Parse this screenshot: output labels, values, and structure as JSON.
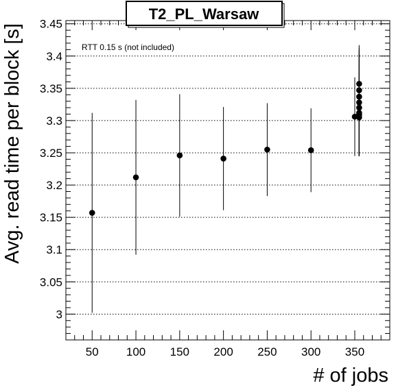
{
  "chart_data": {
    "type": "scatter",
    "title": "T2_PL_Warsaw",
    "xlabel": "# of jobs",
    "ylabel": "Avg. read time per block [s]",
    "annotation": "RTT 0.15 s (not included)",
    "xlim": [
      20,
      390
    ],
    "ylim": [
      2.96,
      3.455
    ],
    "x_ticks": [
      50,
      100,
      150,
      200,
      250,
      300,
      350
    ],
    "y_ticks": [
      3,
      3.05,
      3.1,
      3.15,
      3.2,
      3.25,
      3.3,
      3.35,
      3.4,
      3.45
    ],
    "x_tick_labels": [
      "50",
      "100",
      "150",
      "200",
      "250",
      "300",
      "350"
    ],
    "y_tick_labels": [
      "3",
      "3.05",
      "3.1",
      "3.15",
      "3.2",
      "3.25",
      "3.3",
      "3.35",
      "3.4",
      "3.45"
    ],
    "grid": {
      "x": false,
      "y": true
    },
    "points": [
      {
        "x": 50,
        "y": 3.157,
        "lo": 3.002,
        "hi": 3.312
      },
      {
        "x": 100,
        "y": 3.212,
        "lo": 3.092,
        "hi": 3.332
      },
      {
        "x": 150,
        "y": 3.246,
        "lo": 3.151,
        "hi": 3.341
      },
      {
        "x": 200,
        "y": 3.241,
        "lo": 3.161,
        "hi": 3.321
      },
      {
        "x": 250,
        "y": 3.255,
        "lo": 3.183,
        "hi": 3.327
      },
      {
        "x": 300,
        "y": 3.254,
        "lo": 3.189,
        "hi": 3.319
      },
      {
        "x": 350,
        "y": 3.306,
        "lo": 3.245,
        "hi": 3.367
      },
      {
        "x": 355,
        "y": 3.305,
        "lo": 3.245,
        "hi": 3.365
      },
      {
        "x": 355,
        "y": 3.309,
        "lo": 3.245,
        "hi": 3.373
      },
      {
        "x": 355,
        "y": 3.312,
        "lo": 3.245,
        "hi": 3.379
      },
      {
        "x": 355,
        "y": 3.32,
        "lo": 3.245,
        "hi": 3.395
      },
      {
        "x": 355,
        "y": 3.328,
        "lo": 3.245,
        "hi": 3.405
      },
      {
        "x": 355,
        "y": 3.337,
        "lo": 3.245,
        "hi": 3.41
      },
      {
        "x": 355,
        "y": 3.347,
        "lo": 3.245,
        "hi": 3.413
      },
      {
        "x": 355,
        "y": 3.357,
        "lo": 3.245,
        "hi": 3.417
      }
    ]
  }
}
